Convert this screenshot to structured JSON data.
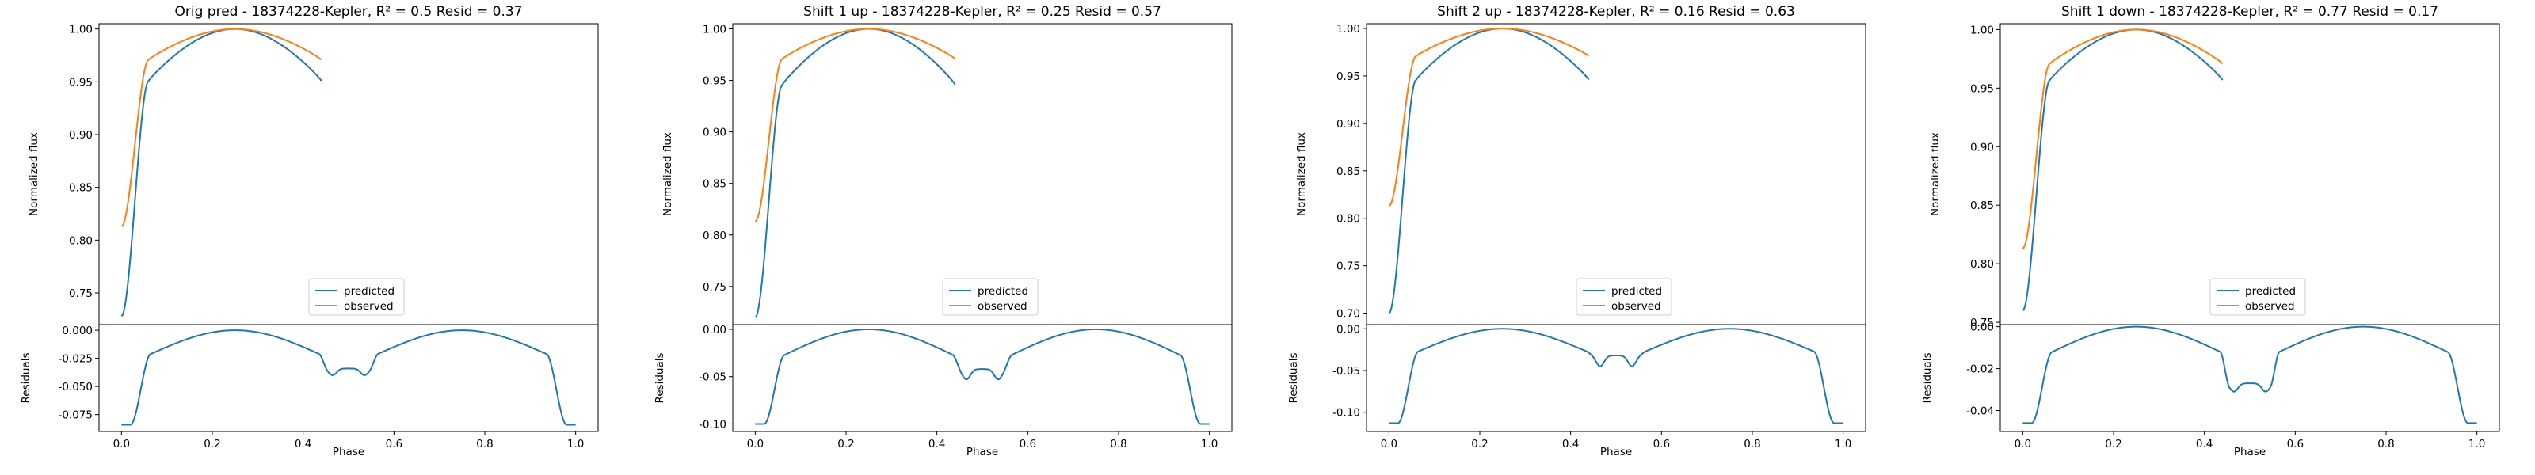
{
  "chart_data": [
    {
      "type": "line",
      "title": "Orig pred - 18374228-Kepler, R² = 0.5 Resid = 0.37",
      "xlabel": "Phase",
      "top_ylabel": "Normalized flux",
      "bottom_ylabel": "Residuals",
      "legend": [
        "predicted",
        "observed"
      ],
      "legend_position": "lower-center",
      "xlim": [
        0,
        1
      ],
      "xticks": [
        "0.0",
        "0.2",
        "0.4",
        "0.6",
        "0.8",
        "1.0"
      ],
      "top_ylim": [
        0.72,
        1.005
      ],
      "top_yticks": [
        "0.75",
        "0.80",
        "0.85",
        "0.90",
        "0.95",
        "1.00"
      ],
      "bottom_ylim": [
        -0.09,
        0.005
      ],
      "bottom_yticks": [
        "0.000",
        "-0.025",
        "-0.050",
        "-0.075"
      ],
      "series": [
        {
          "name": "predicted",
          "min_at_edges": 0.728,
          "shoulder": 0.951,
          "shoulder_inner": 0.965,
          "mid_min": 0.84
        },
        {
          "name": "observed",
          "min_at_edges": 0.813,
          "shoulder": 0.971,
          "shoulder_inner": 0.978,
          "mid_min": 0.875
        }
      ],
      "residuals": {
        "edge": -0.084,
        "shoulder": -0.021,
        "mid_bump": -0.034,
        "mid_dip": -0.04
      }
    },
    {
      "type": "line",
      "title": "Shift 1 up - 18374228-Kepler, R² = 0.25 Resid = 0.57",
      "xlabel": "Phase",
      "top_ylabel": "Normalized flux",
      "bottom_ylabel": "Residuals",
      "legend": [
        "predicted",
        "observed"
      ],
      "legend_position": "lower-center",
      "xlim": [
        0,
        1
      ],
      "xticks": [
        "0.0",
        "0.2",
        "0.4",
        "0.6",
        "0.8",
        "1.0"
      ],
      "top_ylim": [
        0.713,
        1.005
      ],
      "top_yticks": [
        "0.75",
        "0.80",
        "0.85",
        "0.90",
        "0.95",
        "1.00"
      ],
      "bottom_ylim": [
        -0.108,
        0.005
      ],
      "bottom_yticks": [
        "0.00",
        "-0.05",
        "-0.10"
      ],
      "series": [
        {
          "name": "predicted",
          "min_at_edges": 0.72,
          "shoulder": 0.946,
          "shoulder_inner": 0.958,
          "mid_min": 0.832
        },
        {
          "name": "observed",
          "min_at_edges": 0.813,
          "shoulder": 0.971,
          "shoulder_inner": 0.978,
          "mid_min": 0.875
        }
      ],
      "residuals": {
        "edge": -0.1,
        "shoulder": -0.027,
        "mid_bump": -0.042,
        "mid_dip": -0.053
      }
    },
    {
      "type": "line",
      "title": "Shift 2 up - 18374228-Kepler, R² = 0.16 Resid = 0.63",
      "xlabel": "Phase",
      "top_ylabel": "Normalized flux",
      "bottom_ylabel": "Residuals",
      "legend": [
        "predicted",
        "observed"
      ],
      "legend_position": "lower-center",
      "xlim": [
        0,
        1
      ],
      "xticks": [
        "0.0",
        "0.2",
        "0.4",
        "0.6",
        "0.8",
        "1.0"
      ],
      "top_ylim": [
        0.688,
        1.005
      ],
      "top_yticks": [
        "0.70",
        "0.75",
        "0.80",
        "0.85",
        "0.90",
        "0.95",
        "1.00"
      ],
      "bottom_ylim": [
        -0.123,
        0.005
      ],
      "bottom_yticks": [
        "0.00",
        "-0.05",
        "-0.10"
      ],
      "series": [
        {
          "name": "predicted",
          "min_at_edges": 0.7,
          "shoulder": 0.946,
          "shoulder_inner": 0.962,
          "mid_min": 0.843
        },
        {
          "name": "observed",
          "min_at_edges": 0.813,
          "shoulder": 0.971,
          "shoulder_inner": 0.978,
          "mid_min": 0.875
        }
      ],
      "residuals": {
        "edge": -0.113,
        "shoulder": -0.027,
        "mid_bump": -0.032,
        "mid_dip": -0.045
      }
    },
    {
      "type": "line",
      "title": "Shift 1 down - 18374228-Kepler, R² = 0.77 Resid = 0.17",
      "xlabel": "Phase",
      "top_ylabel": "Normalized flux",
      "bottom_ylabel": "Residuals",
      "legend": [
        "predicted",
        "observed"
      ],
      "legend_position": "lower-center",
      "xlim": [
        0,
        1
      ],
      "xticks": [
        "0.0",
        "0.2",
        "0.4",
        "0.6",
        "0.8",
        "1.0"
      ],
      "top_ylim": [
        0.748,
        1.005
      ],
      "top_yticks": [
        "0.75",
        "0.80",
        "0.85",
        "0.90",
        "0.95",
        "1.00"
      ],
      "bottom_ylim": [
        -0.05,
        0.001
      ],
      "bottom_yticks": [
        "0.00",
        "-0.02",
        "-0.04"
      ],
      "series": [
        {
          "name": "predicted",
          "min_at_edges": 0.76,
          "shoulder": 0.957,
          "shoulder_inner": 0.967,
          "mid_min": 0.846
        },
        {
          "name": "observed",
          "min_at_edges": 0.813,
          "shoulder": 0.971,
          "shoulder_inner": 0.978,
          "mid_min": 0.875
        }
      ],
      "residuals": {
        "edge": -0.046,
        "shoulder": -0.012,
        "mid_bump": -0.027,
        "mid_dip": -0.031
      }
    }
  ],
  "colors": {
    "predicted": "#1f77b4",
    "observed": "#ff7f0e"
  }
}
